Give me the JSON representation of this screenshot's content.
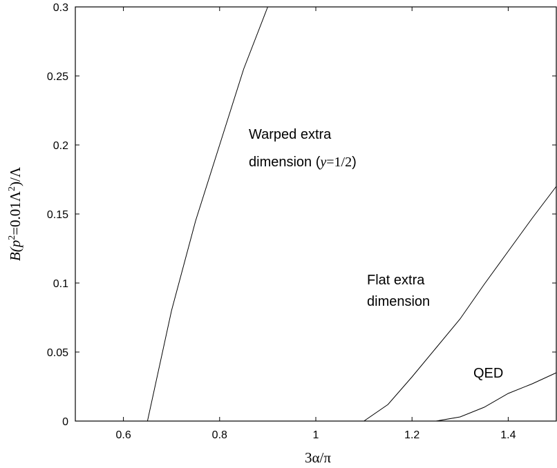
{
  "chart_data": {
    "type": "line",
    "title": "",
    "xlabel": "3α/π",
    "ylabel_parts": [
      "B(",
      "p",
      "2",
      "=0.01Λ",
      "2",
      ")/Λ"
    ],
    "xlim": [
      0.5,
      1.5
    ],
    "ylim": [
      0,
      0.3
    ],
    "xticks": [
      0.6,
      0.8,
      1.0,
      1.2,
      1.4
    ],
    "xtick_labels": [
      "0.6",
      "0.8",
      "1",
      "1.2",
      "1.4"
    ],
    "yticks": [
      0,
      0.05,
      0.1,
      0.15,
      0.2,
      0.25,
      0.3
    ],
    "ytick_labels": [
      "0",
      "0.05",
      "0.1",
      "0.15",
      "0.2",
      "0.25",
      "0.3"
    ],
    "grid": false,
    "legend": "none",
    "series": [
      {
        "x": [
          0.5,
          0.65,
          0.7,
          0.75,
          0.8,
          0.85,
          0.9
        ],
        "y": [
          0,
          0,
          0.08,
          0.145,
          0.2,
          0.255,
          0.3
        ]
      },
      {
        "x": [
          0.5,
          1.1,
          1.15,
          1.2,
          1.25,
          1.3,
          1.35,
          1.4,
          1.45,
          1.5
        ],
        "y": [
          0,
          0,
          0.012,
          0.032,
          0.053,
          0.074,
          0.099,
          0.123,
          0.147,
          0.17
        ]
      },
      {
        "x": [
          0.5,
          1.25,
          1.3,
          1.35,
          1.4,
          1.45,
          1.5
        ],
        "y": [
          0,
          0,
          0.003,
          0.01,
          0.02,
          0.027,
          0.035
        ]
      }
    ],
    "annotations": [
      {
        "lines": [
          "Warped extra",
          "dimension ("
        ],
        "math": [
          "y",
          "=1/2",
          ")"
        ]
      },
      {
        "lines": [
          "Flat extra",
          "dimension"
        ]
      },
      {
        "lines": [
          "QED"
        ]
      }
    ]
  }
}
